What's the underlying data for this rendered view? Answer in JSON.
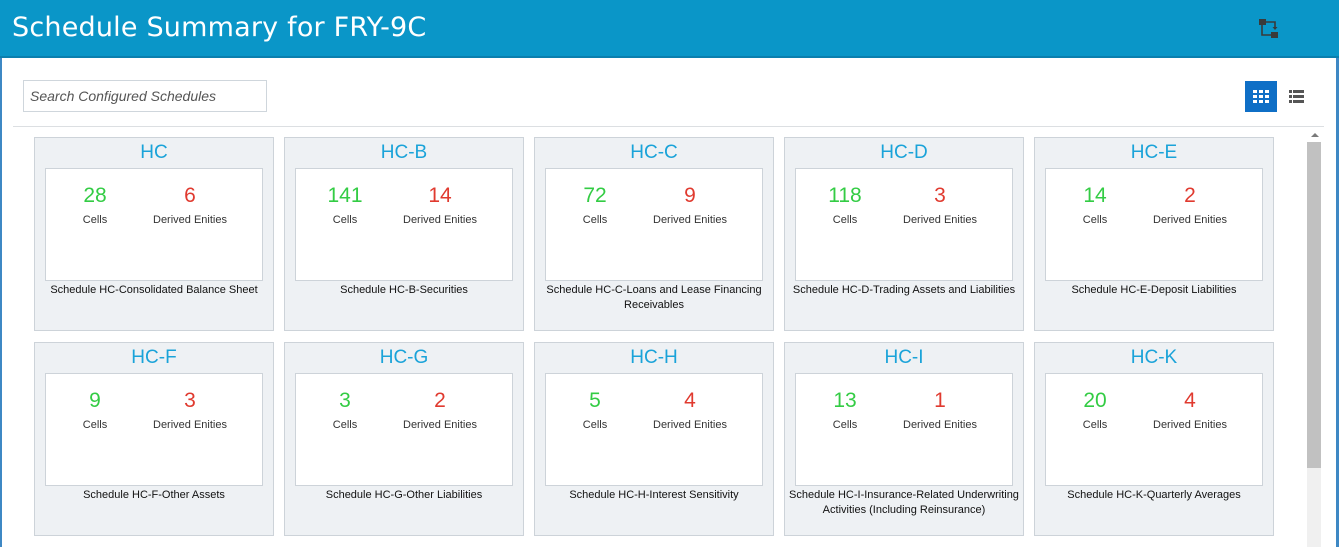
{
  "header": {
    "title": "Schedule Summary for FRY-9C",
    "action_icon": "swap-hierarchy-icon"
  },
  "search": {
    "placeholder": "Search Configured Schedules",
    "value": ""
  },
  "view_toggle": {
    "selected": "grid",
    "active_color": "#0f6fc6"
  },
  "colors": {
    "header": "#0a96c8",
    "cells": "#33cc44",
    "derived": "#e03a2f",
    "title": "#1aa3d9"
  },
  "labels": {
    "cells": "Cells",
    "derived": "Derived Enities"
  },
  "cards": [
    {
      "code": "HC",
      "cells": "28",
      "derived": "6",
      "desc": "Schedule HC-Consolidated Balance Sheet"
    },
    {
      "code": "HC-B",
      "cells": "141",
      "derived": "14",
      "desc": "Schedule HC-B-Securities"
    },
    {
      "code": "HC-C",
      "cells": "72",
      "derived": "9",
      "desc": "Schedule HC-C-Loans and Lease Financing Receivables"
    },
    {
      "code": "HC-D",
      "cells": "118",
      "derived": "3",
      "desc": "Schedule HC-D-Trading Assets and Liabilities"
    },
    {
      "code": "HC-E",
      "cells": "14",
      "derived": "2",
      "desc": "Schedule HC-E-Deposit Liabilities"
    },
    {
      "code": "HC-F",
      "cells": "9",
      "derived": "3",
      "desc": "Schedule HC-F-Other Assets"
    },
    {
      "code": "HC-G",
      "cells": "3",
      "derived": "2",
      "desc": "Schedule HC-G-Other Liabilities"
    },
    {
      "code": "HC-H",
      "cells": "5",
      "derived": "4",
      "desc": "Schedule HC-H-Interest Sensitivity"
    },
    {
      "code": "HC-I",
      "cells": "13",
      "derived": "1",
      "desc": "Schedule HC-I-Insurance-Related Underwriting Activities (Including Reinsurance)"
    },
    {
      "code": "HC-K",
      "cells": "20",
      "derived": "4",
      "desc": "Schedule HC-K-Quarterly Averages"
    }
  ]
}
